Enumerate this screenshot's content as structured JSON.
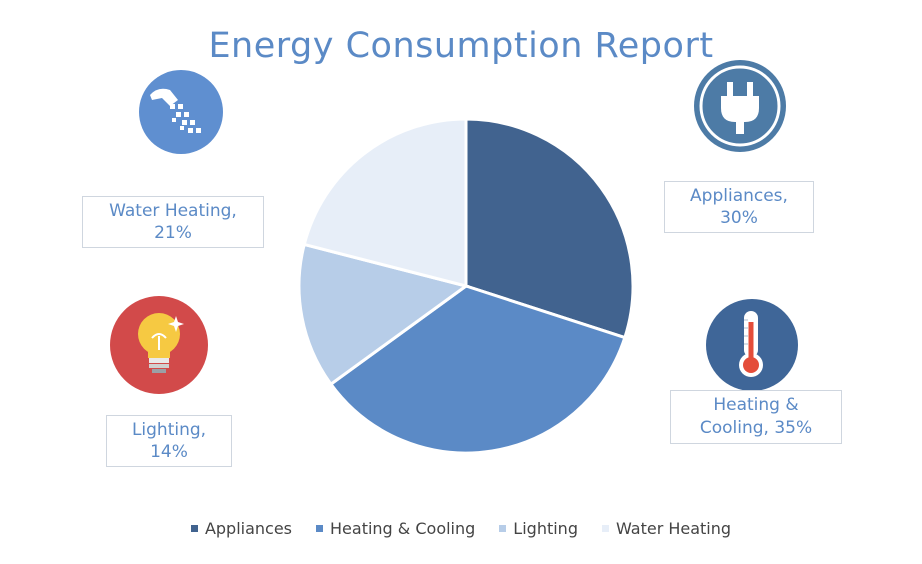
{
  "chart_data": {
    "type": "pie",
    "title": "Energy Consumption Report",
    "slices": [
      {
        "name": "Appliances",
        "value": 30,
        "label": "Appliances, 30%",
        "color": "#41638f",
        "icon": "plug-icon",
        "icon_bg": "#4d7ba6"
      },
      {
        "name": "Heating & Cooling",
        "value": 35,
        "label": "Heating & Cooling, 35%",
        "color": "#5b8ac6",
        "icon": "thermometer-icon",
        "icon_bg": "#3f6698"
      },
      {
        "name": "Lighting",
        "value": 14,
        "label": "Lighting, 14%",
        "color": "#b7cde8",
        "icon": "lightbulb-icon",
        "icon_bg": "#d24a4a"
      },
      {
        "name": "Water Heating",
        "value": 21,
        "label": "Water Heating, 21%",
        "color": "#e7eef8",
        "icon": "shower-icon",
        "icon_bg": "#5f8fd0"
      }
    ],
    "start_angle": "12 o'clock",
    "direction": "clockwise",
    "legend": "bottom"
  }
}
